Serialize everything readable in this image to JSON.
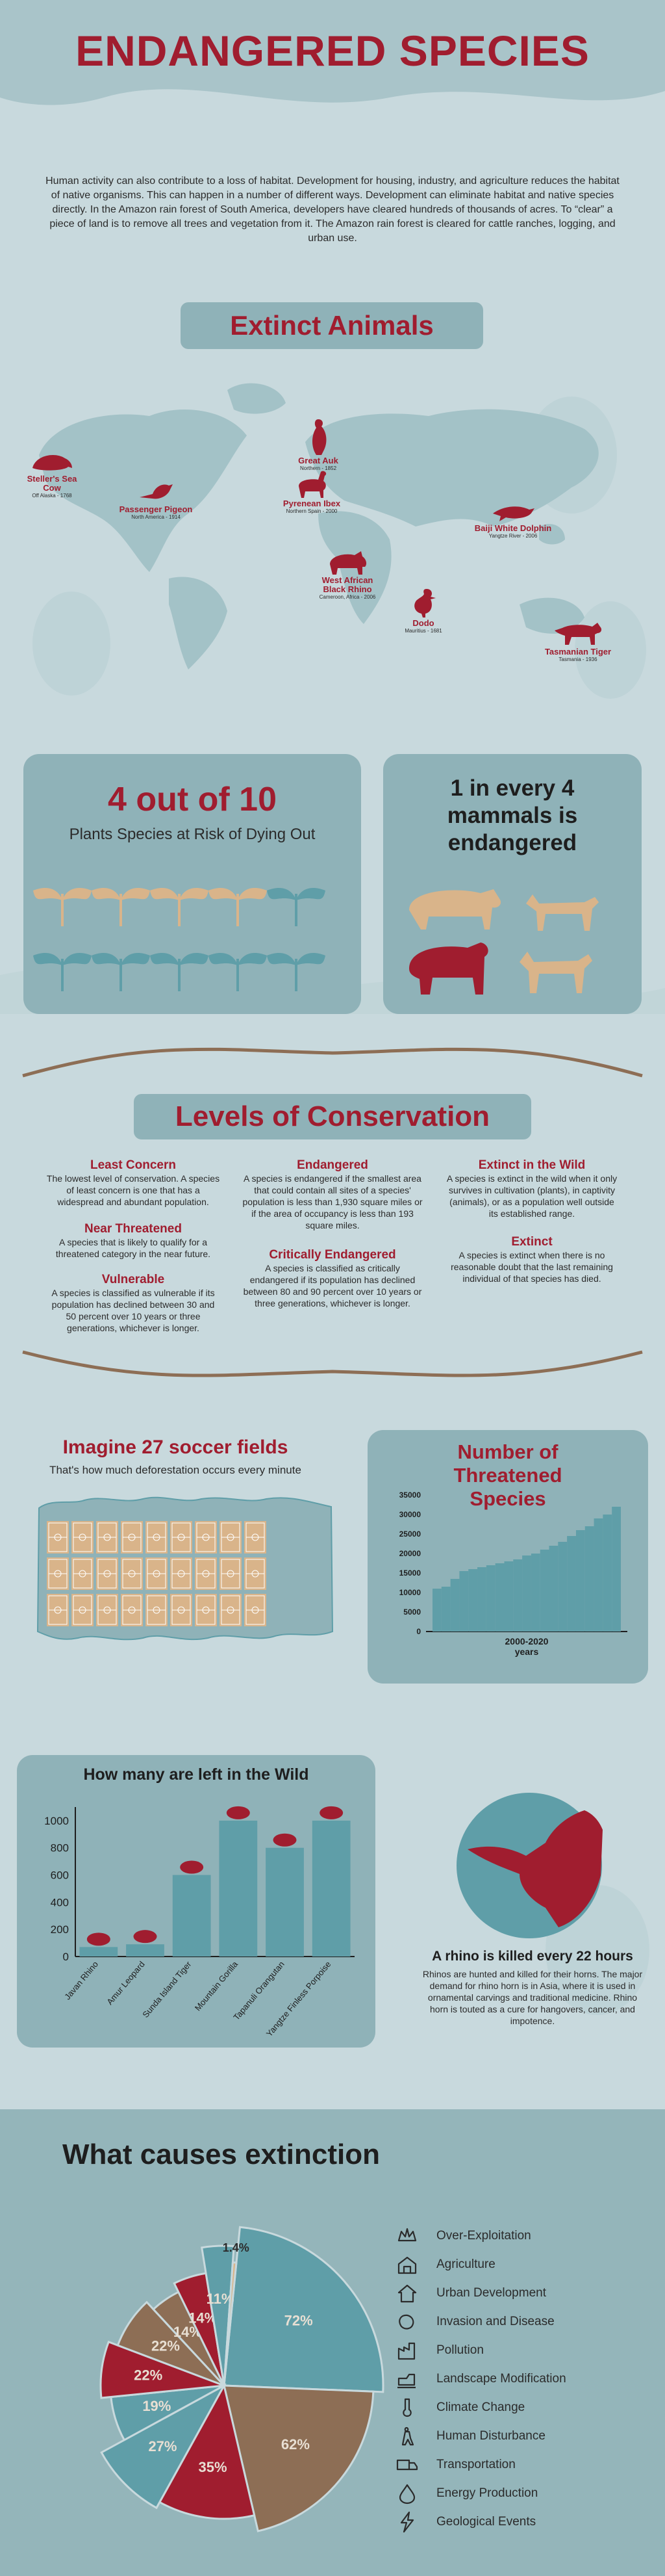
{
  "header": {
    "title": "ENDANGERED SPECIES",
    "intro": "Human activity can also contribute to a loss of habitat. Development for housing, industry, and agriculture reduces the habitat of native organisms. This can happen in a number of different ways. Development can eliminate habitat and native species directly. In the Amazon rain forest of South America, developers have cleared hundreds of thousands of acres. To “clear” a piece of land is to remove all trees and vegetation from it. The Amazon rain forest is cleared for cattle ranches, logging, and urban use."
  },
  "extinct": {
    "heading": "Extinct Animals",
    "animals": [
      {
        "name": "Steller's Sea Cow",
        "sub": "Off Alaska - 1768"
      },
      {
        "name": "Passenger Pigeon",
        "sub": "North America - 1914"
      },
      {
        "name": "Great Auk",
        "sub": "Northern - 1852"
      },
      {
        "name": "Pyrenean Ibex",
        "sub": "Northern Spain - 2000"
      },
      {
        "name": "West African Black Rhino",
        "sub": "Cameroon, Africa - 2006"
      },
      {
        "name": "Baiji White Dolphin",
        "sub": "Yangtze River - 2006"
      },
      {
        "name": "Dodo",
        "sub": "Mauritius - 1681"
      },
      {
        "name": "Tasmanian Tiger",
        "sub": "Tasmania - 1936"
      }
    ]
  },
  "stats": {
    "plants_big": "4 out of 10",
    "plants_text": "Plants Species at Risk of Dying Out",
    "mammals_text": "1 in every 4 mammals is endangered"
  },
  "levels": {
    "heading": "Levels of Conservation",
    "items": [
      {
        "title": "Least Concern",
        "text": "The lowest level of conservation. A species of least concern is one that has a widespread and abundant population."
      },
      {
        "title": "Near Threatened",
        "text": "A species that is likely to qualify for a threatened category in the near future."
      },
      {
        "title": "Vulnerable",
        "text": "A species is classified as vulnerable if its population has declined between 30 and 50 percent over 10 years or three generations, whichever is longer."
      },
      {
        "title": "Endangered",
        "text": "A species is endangered if the smallest area that could contain all sites of a species' population is less than 1,930 square miles or if the area of occupancy is less than 193 square miles."
      },
      {
        "title": "Critically Endangered",
        "text": "A species is classified as critically endangered if its population has declined between 80 and 90 percent over 10 years or three generations, whichever is longer."
      },
      {
        "title": "Extinct in the Wild",
        "text": "A species is extinct in the wild when it only survives in cultivation (plants), in captivity (animals), or as a population well outside its established range."
      },
      {
        "title": "Extinct",
        "text": "A species is extinct when there is no reasonable doubt that the last remaining individual of that species has died."
      }
    ]
  },
  "soccer": {
    "title": "Imagine 27 soccer fields",
    "sub": "That's how much deforestation occurs every minute"
  },
  "threatened_chart": {
    "title": "Number of Threatened Species",
    "xlabel": "2000-2020",
    "xlabel2": "years"
  },
  "wild_chart": {
    "title": "How many are left in the Wild"
  },
  "rhino": {
    "title": "A rhino is killed every 22 hours",
    "text": "Rhinos are hunted and killed for their horns. The major demand for rhino horn is in Asia, where it is used in ornamental carvings and traditional medicine. Rhino horn is touted as a cure for hangovers, cancer, and impotence."
  },
  "causes": {
    "title": "What causes extinction",
    "legend": [
      "Over-Exploitation",
      "Agriculture",
      "Urban Development",
      "Invasion and Disease",
      "Pollution",
      "Landscape Modification",
      "Climate Change",
      "Human Disturbance",
      "Transportation",
      "Energy Production",
      "Geological Events"
    ],
    "legend_icons": [
      "crown-icon",
      "barn-icon",
      "house-icon",
      "bacteria-icon",
      "factory-icon",
      "bulldozer-icon",
      "thermometer-icon",
      "hiker-icon",
      "truck-icon",
      "oil-drop-icon",
      "lightning-icon"
    ]
  },
  "colors": {
    "maroon": "#a01d2f",
    "teal": "#5f9ea8",
    "brown": "#8d6e55",
    "tan": "#d9b48a",
    "panel": "#8fb2b8",
    "bg": "#c8d9dd"
  },
  "chart_data": [
    {
      "type": "bar",
      "title": "Number of Threatened Species",
      "xlabel": "2000-2020",
      "ylabel": "",
      "ylim": [
        0,
        35000
      ],
      "yticks": [
        0,
        5000,
        10000,
        15000,
        20000,
        25000,
        30000,
        35000
      ],
      "values": [
        11000,
        11500,
        13500,
        15500,
        16000,
        16500,
        17000,
        17500,
        18000,
        18500,
        19500,
        20000,
        21000,
        22000,
        23000,
        24500,
        26000,
        27000,
        29000,
        30000,
        32000
      ]
    },
    {
      "type": "bar",
      "title": "How many are left in the Wild",
      "ylim": [
        0,
        1100
      ],
      "yticks": [
        0,
        200,
        400,
        600,
        800,
        1000
      ],
      "categories": [
        "Javan Rhino",
        "Amur Leopard",
        "Sunda Island Tiger",
        "Mountain Gorilla",
        "Tapanuli Orangutan",
        "Yangtze Finless Porpoise"
      ],
      "values": [
        70,
        90,
        600,
        1000,
        800,
        1000
      ]
    },
    {
      "type": "pie",
      "title": "What causes extinction",
      "categories": [
        "Over-Exploitation",
        "Agriculture",
        "Urban Development",
        "Invasion and Disease",
        "Climate Change",
        "Pollution",
        "Landscape Modification",
        "Human Disturbance",
        "Transportation",
        "Energy Production",
        "Geological Events"
      ],
      "values": [
        72,
        62,
        35,
        27,
        19,
        22,
        22,
        14,
        14,
        11,
        1.4
      ],
      "labels": [
        "72%",
        "62%",
        "35%",
        "27%",
        "19%",
        "22%",
        "22%",
        "14%",
        "14%",
        "11%",
        "1.4%"
      ]
    }
  ]
}
